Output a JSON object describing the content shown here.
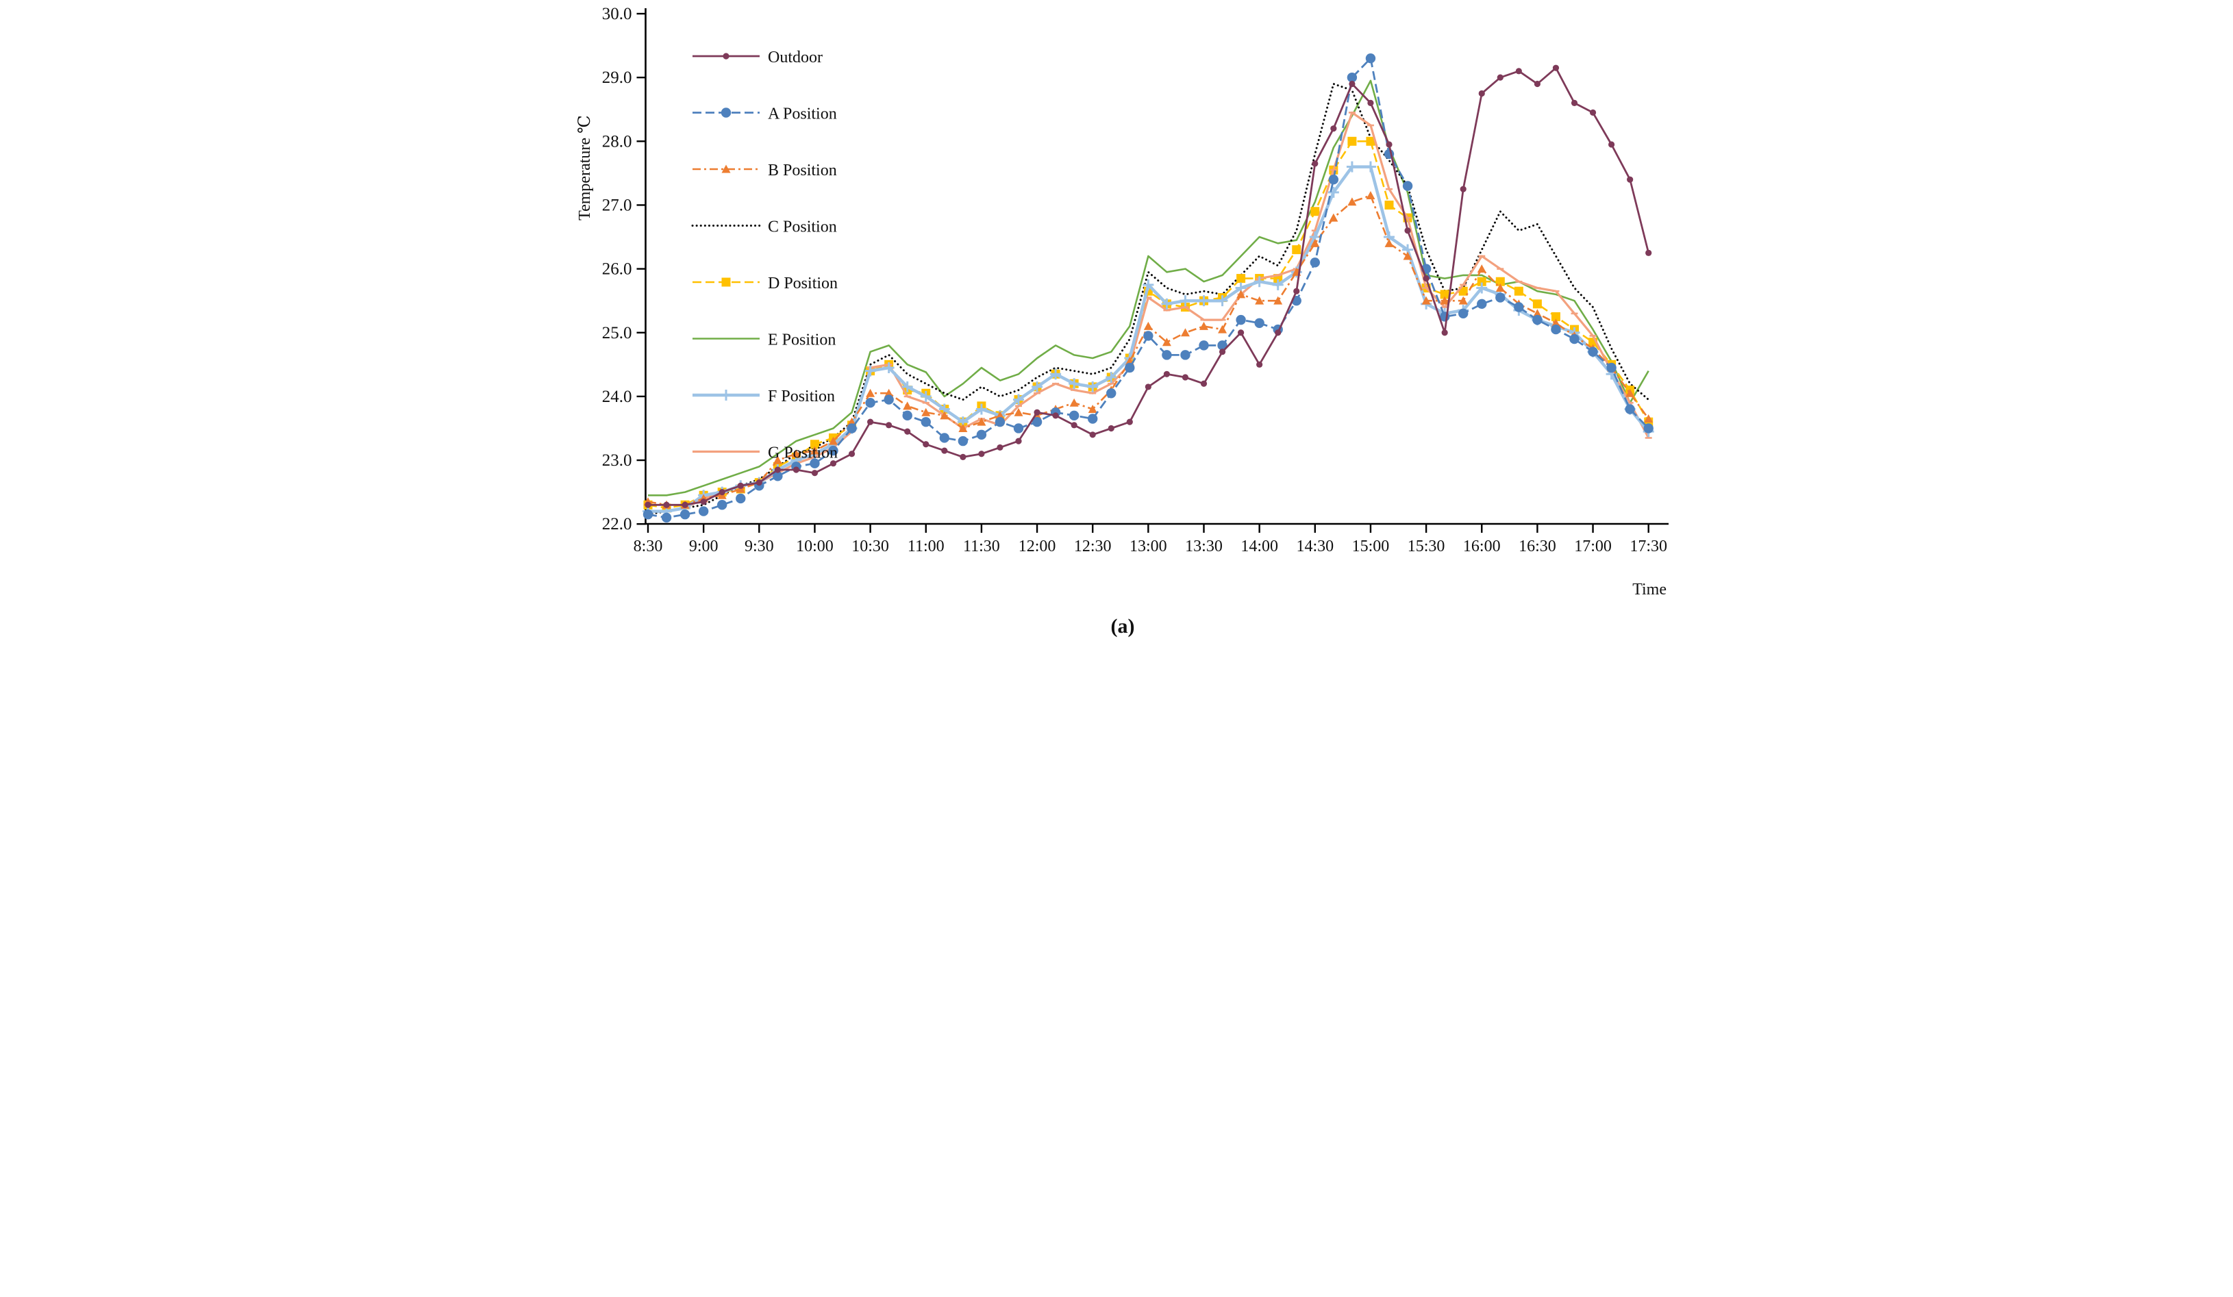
{
  "figure": {
    "caption": "(a)"
  },
  "axes": {
    "y_title": "Temperature ℃",
    "x_title": "Time",
    "y_ticks": [
      "30.0",
      "29.0",
      "28.0",
      "27.0",
      "26.0",
      "25.0",
      "24.0",
      "23.0",
      "22.0"
    ],
    "x_tick_labels": [
      "8:30",
      "9:00",
      "9:30",
      "10:00",
      "10:30",
      "11:00",
      "11:30",
      "12:00",
      "12:30",
      "13:00",
      "13:30",
      "14:00",
      "14:30",
      "15:00",
      "15:30",
      "16:00",
      "16:30",
      "17:00",
      "17:30"
    ]
  },
  "chart_data": {
    "type": "line",
    "title": "",
    "xlabel": "Time",
    "ylabel": "Temperature ℃",
    "ylim": [
      22.0,
      30.0
    ],
    "grid": false,
    "legend_position": "upper-left-vertical",
    "x": [
      "8:30",
      "8:40",
      "8:50",
      "9:00",
      "9:10",
      "9:20",
      "9:30",
      "9:40",
      "9:50",
      "10:00",
      "10:10",
      "10:20",
      "10:30",
      "10:40",
      "10:50",
      "11:00",
      "11:10",
      "11:20",
      "11:30",
      "11:40",
      "11:50",
      "12:00",
      "12:10",
      "12:20",
      "12:30",
      "12:40",
      "12:50",
      "13:00",
      "13:10",
      "13:20",
      "13:30",
      "13:40",
      "13:50",
      "14:00",
      "14:10",
      "14:20",
      "14:30",
      "14:40",
      "14:50",
      "15:00",
      "15:10",
      "15:20",
      "15:30",
      "15:40",
      "15:50",
      "16:00",
      "16:10",
      "16:20",
      "16:30",
      "16:40",
      "16:50",
      "17:00",
      "17:10",
      "17:20",
      "17:30"
    ],
    "series": [
      {
        "name": "E Position",
        "color": "#70AD47",
        "dash": "none",
        "marker": "none",
        "width": 2.6,
        "values": [
          22.45,
          22.45,
          22.5,
          22.6,
          22.7,
          22.8,
          22.9,
          23.1,
          23.3,
          23.4,
          23.5,
          23.75,
          24.7,
          24.8,
          24.5,
          24.38,
          24.0,
          24.2,
          24.45,
          24.25,
          24.35,
          24.6,
          24.8,
          24.65,
          24.6,
          24.7,
          25.1,
          26.2,
          25.95,
          26.0,
          25.8,
          25.9,
          26.2,
          26.5,
          26.4,
          26.45,
          27.05,
          27.9,
          28.4,
          28.95,
          27.9,
          27.2,
          25.9,
          25.85,
          25.9,
          25.9,
          25.75,
          25.8,
          25.65,
          25.6,
          25.5,
          25.05,
          24.55,
          23.9,
          24.4
        ]
      },
      {
        "name": "C Position",
        "color": "#0a0a0a",
        "dash": "dotted",
        "marker": "none",
        "width": 3.0,
        "values": [
          22.15,
          22.2,
          22.25,
          22.3,
          22.45,
          22.6,
          22.7,
          22.9,
          23.1,
          23.2,
          23.35,
          23.6,
          24.5,
          24.65,
          24.35,
          24.2,
          24.05,
          23.95,
          24.15,
          24.0,
          24.1,
          24.3,
          24.45,
          24.4,
          24.35,
          24.45,
          24.9,
          25.95,
          25.7,
          25.6,
          25.65,
          25.6,
          25.9,
          26.2,
          26.05,
          26.6,
          27.8,
          28.9,
          28.8,
          28.05,
          27.7,
          27.3,
          26.3,
          25.65,
          25.7,
          26.3,
          26.9,
          26.6,
          26.7,
          26.2,
          25.7,
          25.4,
          24.75,
          24.2,
          23.95
        ]
      },
      {
        "name": "D Position",
        "color": "#FFC000",
        "dash": "dash",
        "marker": "square",
        "width": 2.6,
        "values": [
          22.3,
          22.25,
          22.3,
          22.45,
          22.5,
          22.55,
          22.65,
          22.9,
          23.05,
          23.25,
          23.35,
          23.55,
          24.4,
          24.5,
          24.1,
          24.05,
          23.8,
          23.6,
          23.85,
          23.7,
          23.95,
          24.15,
          24.35,
          24.2,
          24.15,
          24.3,
          24.6,
          25.65,
          25.45,
          25.4,
          25.5,
          25.55,
          25.85,
          25.85,
          25.85,
          26.3,
          26.9,
          27.55,
          28.0,
          28.0,
          27.0,
          26.8,
          25.7,
          25.6,
          25.65,
          25.8,
          25.8,
          25.65,
          25.45,
          25.25,
          25.05,
          24.85,
          24.5,
          24.1,
          23.6
        ]
      },
      {
        "name": "G Position",
        "color": "#F3A17E",
        "dash": "none",
        "marker": "tick",
        "width": 3.2,
        "values": [
          22.2,
          22.2,
          22.25,
          22.4,
          22.5,
          22.6,
          22.65,
          22.8,
          22.95,
          23.05,
          23.2,
          23.45,
          24.45,
          24.5,
          24.0,
          23.9,
          23.7,
          23.5,
          23.65,
          23.55,
          23.85,
          24.05,
          24.2,
          24.1,
          24.05,
          24.2,
          24.5,
          25.55,
          25.35,
          25.4,
          25.2,
          25.2,
          25.6,
          25.85,
          25.9,
          26.0,
          26.6,
          27.55,
          28.45,
          28.25,
          27.25,
          26.8,
          25.7,
          25.4,
          25.75,
          26.2,
          26.0,
          25.8,
          25.7,
          25.65,
          25.3,
          24.95,
          24.4,
          23.9,
          23.35
        ]
      },
      {
        "name": "F Position",
        "color": "#9DC3E6",
        "dash": "none",
        "marker": "plus",
        "width": 4.5,
        "values": [
          22.2,
          22.2,
          22.25,
          22.45,
          22.5,
          22.6,
          22.65,
          22.85,
          23.0,
          23.1,
          23.25,
          23.5,
          24.4,
          24.45,
          24.15,
          24.0,
          23.8,
          23.6,
          23.8,
          23.7,
          23.95,
          24.15,
          24.35,
          24.2,
          24.15,
          24.3,
          24.6,
          25.75,
          25.45,
          25.5,
          25.5,
          25.5,
          25.7,
          25.8,
          25.75,
          25.95,
          26.5,
          27.2,
          27.6,
          27.6,
          26.5,
          26.3,
          25.45,
          25.3,
          25.35,
          25.7,
          25.6,
          25.35,
          25.2,
          25.1,
          25.0,
          24.7,
          24.35,
          23.8,
          23.45
        ]
      },
      {
        "name": "B Position",
        "color": "#ED7D31",
        "dash": "dashdot",
        "marker": "triangle",
        "width": 2.6,
        "values": [
          22.35,
          22.3,
          22.3,
          22.4,
          22.45,
          22.55,
          22.65,
          23.0,
          23.1,
          23.15,
          23.3,
          23.6,
          24.05,
          24.05,
          23.85,
          23.75,
          23.7,
          23.5,
          23.6,
          23.7,
          23.75,
          23.7,
          23.8,
          23.9,
          23.8,
          24.1,
          24.55,
          25.1,
          24.85,
          25.0,
          25.1,
          25.05,
          25.6,
          25.5,
          25.5,
          25.95,
          26.4,
          26.8,
          27.05,
          27.15,
          26.4,
          26.2,
          25.5,
          25.5,
          25.5,
          26.0,
          25.7,
          25.45,
          25.3,
          25.15,
          24.95,
          24.75,
          24.45,
          24.05,
          23.65
        ]
      },
      {
        "name": "A Position",
        "color": "#4E81BD",
        "dash": "dash",
        "marker": "circle-lg",
        "width": 2.8,
        "values": [
          22.15,
          22.1,
          22.15,
          22.2,
          22.3,
          22.4,
          22.6,
          22.75,
          22.9,
          22.95,
          23.15,
          23.5,
          23.9,
          23.95,
          23.7,
          23.6,
          23.35,
          23.3,
          23.4,
          23.6,
          23.5,
          23.6,
          23.75,
          23.7,
          23.65,
          24.05,
          24.45,
          24.95,
          24.65,
          24.65,
          24.8,
          24.8,
          25.2,
          25.15,
          25.05,
          25.5,
          26.1,
          27.4,
          29.0,
          29.3,
          27.8,
          27.3,
          26.0,
          25.25,
          25.3,
          25.45,
          25.55,
          25.4,
          25.2,
          25.05,
          24.9,
          24.7,
          24.45,
          23.8,
          23.5
        ]
      },
      {
        "name": "Outdoor",
        "color": "#7E3A59",
        "dash": "none",
        "marker": "circle-sm",
        "width": 2.8,
        "values": [
          22.3,
          22.3,
          22.3,
          22.35,
          22.5,
          22.6,
          22.65,
          22.85,
          22.85,
          22.8,
          22.95,
          23.1,
          23.6,
          23.55,
          23.45,
          23.25,
          23.15,
          23.05,
          23.1,
          23.2,
          23.3,
          23.75,
          23.7,
          23.55,
          23.4,
          23.5,
          23.6,
          24.15,
          24.35,
          24.3,
          24.2,
          24.7,
          25.0,
          24.5,
          25.0,
          25.65,
          27.65,
          28.2,
          28.9,
          28.6,
          27.95,
          26.6,
          25.85,
          25.0,
          27.25,
          28.75,
          29.0,
          29.1,
          28.9,
          29.15,
          28.6,
          28.45,
          27.95,
          27.4,
          26.25
        ]
      }
    ],
    "legend_order": [
      "Outdoor",
      "A Position",
      "B Position",
      "C Position",
      "D Position",
      "E Position",
      "F Position",
      "G Position"
    ]
  }
}
